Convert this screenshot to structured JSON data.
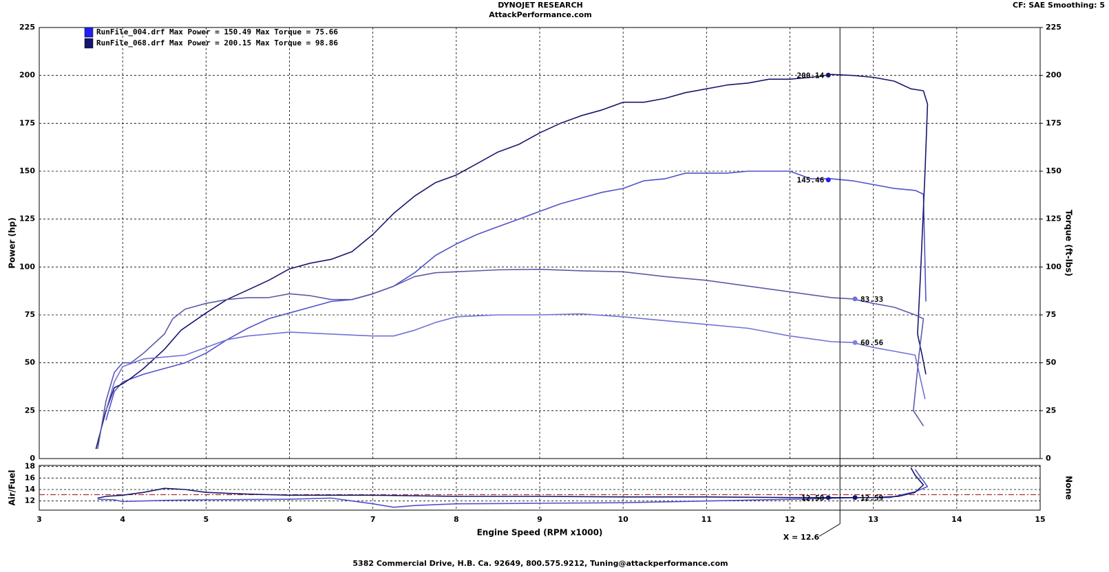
{
  "header": {
    "title": "DYNOJET RESEARCH",
    "subtitle": "AttackPerformance.com",
    "settings": "CF: SAE  Smoothing: 5"
  },
  "footer": "5382 Commercial Drive, H.B. Ca. 92649, 800.575.9212, Tuning@attackperformance.com",
  "chart_data": [
    {
      "type": "line",
      "ylabel": "Power (hp)",
      "y2label": "Torque (ft-lbs)",
      "xlim": [
        3,
        15
      ],
      "xticks": [
        3,
        4,
        5,
        6,
        7,
        8,
        9,
        10,
        11,
        12,
        13,
        14,
        15
      ],
      "x_tick_labels": false,
      "ylim": [
        0,
        225
      ],
      "yticks": [
        0,
        25,
        50,
        75,
        100,
        125,
        150,
        175,
        200,
        225
      ],
      "y2lim": [
        0,
        225
      ],
      "y2ticks": [
        0,
        25,
        50,
        75,
        100,
        125,
        150,
        175,
        200,
        225
      ],
      "grid": true,
      "legend": [
        {
          "label": "RunFile_004.drf Max Power = 150.49 Max Torque = 75.66",
          "color": "#2020f0"
        },
        {
          "label": "RunFile_068.drf Max Power = 200.15 Max Torque = 98.86",
          "color": "#16166e"
        }
      ],
      "series": [
        {
          "color": "#5050c8",
          "x": [
            3.8,
            3.9,
            4.0,
            4.25,
            4.5,
            4.75,
            5.0,
            5.25,
            5.5,
            5.75,
            6.0,
            6.25,
            6.5,
            6.75,
            7.0,
            7.25,
            7.5,
            7.75,
            8.0,
            8.25,
            8.5,
            8.75,
            9.0,
            9.25,
            9.5,
            9.75,
            10.0,
            10.25,
            10.5,
            10.75,
            11.0,
            11.25,
            11.5,
            11.75,
            12.0,
            12.25,
            12.5,
            12.75,
            13.0,
            13.25,
            13.5,
            13.6,
            13.63
          ],
          "values": [
            20,
            35,
            40,
            44,
            47,
            50,
            55,
            62,
            68,
            73,
            76,
            79,
            82,
            83,
            86,
            90,
            97,
            106,
            112,
            117,
            121,
            125,
            129,
            133,
            136,
            139,
            141,
            145,
            146,
            149,
            149,
            149,
            150,
            150,
            150,
            146,
            146,
            145,
            143,
            141,
            140,
            138,
            82
          ]
        },
        {
          "color": "#16166e",
          "x": [
            3.68,
            3.8,
            3.9,
            4.0,
            4.1,
            4.25,
            4.5,
            4.7,
            5.0,
            5.25,
            5.5,
            5.75,
            6.0,
            6.25,
            6.5,
            6.75,
            7.0,
            7.25,
            7.5,
            7.75,
            8.0,
            8.25,
            8.5,
            8.75,
            9.0,
            9.25,
            9.5,
            9.75,
            10.0,
            10.25,
            10.5,
            10.75,
            11.0,
            11.25,
            11.5,
            11.75,
            12.0,
            12.25,
            12.5,
            12.75,
            13.0,
            13.25,
            13.45,
            13.6,
            13.65,
            13.62,
            13.57,
            13.53,
            13.58,
            13.63
          ],
          "values": [
            5,
            25,
            37,
            39,
            42,
            47,
            57,
            67,
            76,
            83,
            88,
            93,
            99,
            102,
            104,
            108,
            117,
            128,
            137,
            144,
            148,
            154,
            160,
            164,
            170,
            175,
            179,
            182,
            186,
            186,
            188,
            191,
            193,
            195,
            196,
            198,
            198,
            199,
            200.5,
            200,
            199,
            197,
            193,
            192,
            185,
            150,
            100,
            65,
            55,
            44
          ]
        },
        {
          "color": "#7070d8",
          "axis": "y2",
          "x": [
            3.8,
            3.9,
            4.0,
            4.25,
            4.5,
            4.75,
            5.0,
            5.25,
            5.5,
            5.75,
            6.0,
            6.5,
            7.0,
            7.25,
            7.5,
            7.75,
            8.0,
            8.5,
            9.0,
            9.5,
            10.0,
            10.5,
            11.0,
            11.5,
            12.0,
            12.5,
            12.75,
            13.0,
            13.25,
            13.5,
            13.62
          ],
          "values": [
            25,
            40,
            48,
            52,
            53,
            54,
            58,
            62,
            64,
            65,
            66,
            65,
            64,
            64,
            67,
            71,
            74,
            75,
            75,
            75.5,
            74,
            72,
            70,
            68,
            64,
            61,
            60.56,
            58,
            56,
            54,
            31
          ]
        },
        {
          "color": "#5a5aa8",
          "axis": "y2",
          "x": [
            3.7,
            3.8,
            3.9,
            4.0,
            4.1,
            4.25,
            4.5,
            4.6,
            4.75,
            5.0,
            5.25,
            5.5,
            5.75,
            6.0,
            6.25,
            6.5,
            6.75,
            7.0,
            7.25,
            7.5,
            7.75,
            8.0,
            8.5,
            9.0,
            9.5,
            10.0,
            10.5,
            11.0,
            11.5,
            12.0,
            12.5,
            12.75,
            13.0,
            13.25,
            13.5,
            13.6,
            13.55,
            13.48,
            13.6
          ],
          "values": [
            5,
            30,
            45,
            50,
            50,
            55,
            65,
            73,
            78,
            81,
            83,
            84,
            84,
            86,
            85,
            83,
            83,
            86,
            90,
            95,
            97,
            97.5,
            98.5,
            98.8,
            98,
            97.5,
            95,
            93,
            90,
            87,
            84,
            83.33,
            81,
            79,
            75,
            73,
            55,
            25,
            17
          ]
        }
      ],
      "markers": [
        {
          "x": 12.46,
          "value": 200.14,
          "color": "#16166e"
        },
        {
          "x": 12.46,
          "value": 145.46,
          "color": "#2020f0"
        },
        {
          "x": 12.78,
          "value": 83.33,
          "axis": "y2",
          "color": "#7070d8"
        },
        {
          "x": 12.78,
          "value": 60.56,
          "axis": "y2",
          "color": "#8080e0"
        }
      ]
    },
    {
      "type": "line",
      "ylabel": "Air/Fuel",
      "y2label": "None",
      "xlabel": "Engine Speed (RPM x1000)",
      "xlim": [
        3,
        15
      ],
      "xticks": [
        3,
        4,
        5,
        6,
        7,
        8,
        9,
        10,
        11,
        12,
        13,
        14,
        15
      ],
      "x_tick_labels": true,
      "ylim": [
        10.4,
        18.2
      ],
      "yticks": [
        12,
        14,
        16,
        18
      ],
      "grid": true,
      "reference": {
        "value": 13.1,
        "color": "#a03030"
      },
      "cursor": {
        "value": 12.6,
        "label": "X = 12.6"
      },
      "series": [
        {
          "color": "#5050c8",
          "x": [
            3.7,
            3.9,
            4.0,
            4.5,
            5.0,
            6.0,
            6.5,
            7.0,
            7.25,
            7.5,
            8.0,
            9.0,
            10.0,
            11.0,
            12.0,
            12.78,
            13.2,
            13.5,
            13.65,
            13.5
          ],
          "values": [
            12.3,
            12.2,
            11.9,
            12.1,
            12.2,
            12.3,
            12.5,
            11.5,
            10.9,
            11.2,
            11.5,
            11.6,
            11.7,
            12.0,
            12.3,
            12.59,
            12.6,
            13.6,
            14.5,
            17.5
          ]
        },
        {
          "color": "#16166e",
          "x": [
            3.7,
            3.8,
            4.0,
            4.25,
            4.5,
            4.75,
            5.0,
            5.5,
            6.0,
            7.0,
            8.0,
            9.0,
            10.0,
            11.0,
            12.0,
            12.46,
            13.0,
            13.3,
            13.5,
            13.6,
            13.5,
            13.45
          ],
          "values": [
            12.5,
            12.8,
            13.0,
            13.5,
            14.2,
            14.0,
            13.5,
            13.2,
            13.0,
            13.0,
            12.8,
            12.8,
            12.7,
            12.7,
            12.6,
            12.58,
            12.6,
            12.8,
            13.5,
            14.8,
            16.5,
            17.8
          ]
        }
      ],
      "markers": [
        {
          "x": 12.46,
          "value": 12.58,
          "color": "#16166e"
        },
        {
          "x": 12.78,
          "value": 12.59,
          "color": "#16166e"
        }
      ]
    }
  ]
}
